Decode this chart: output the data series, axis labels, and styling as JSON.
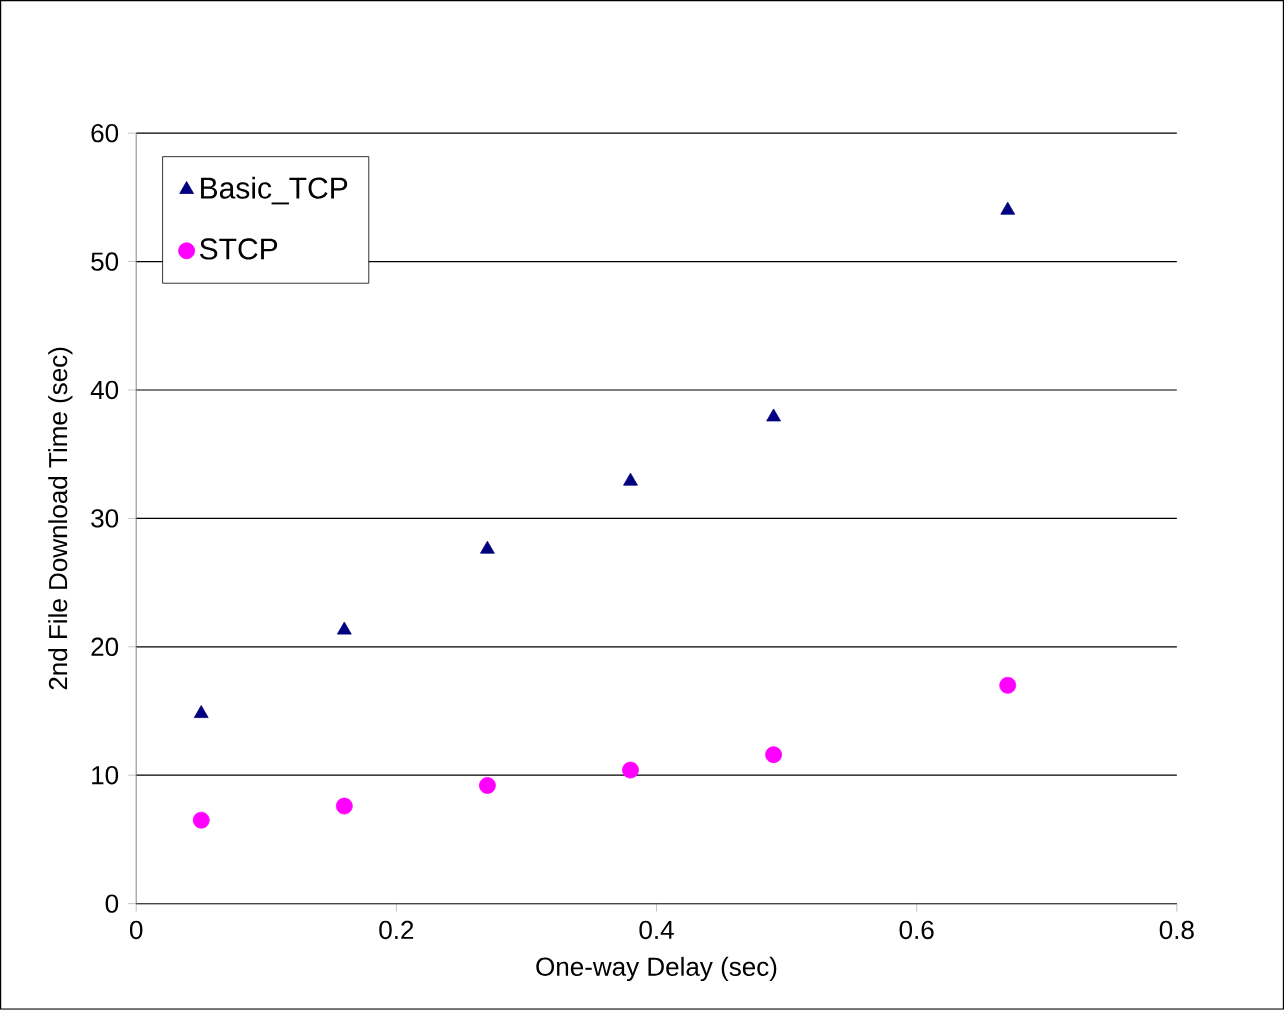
{
  "chart_data": {
    "type": "scatter",
    "xlabel": "One-way Delay (sec)",
    "ylabel": "2nd File Download Time (sec)",
    "x": [
      0.05,
      0.16,
      0.27,
      0.38,
      0.49,
      0.67
    ],
    "series": [
      {
        "name": "Basic_TCP",
        "color": "#000080",
        "marker": "triangle",
        "values": [
          14.8,
          21.3,
          27.6,
          32.9,
          37.9,
          54
        ]
      },
      {
        "name": "STCP",
        "color": "#ff00ff",
        "marker": "circle",
        "values": [
          6.5,
          7.6,
          9.2,
          10.4,
          11.6,
          17
        ]
      }
    ],
    "xlim": [
      0,
      0.8
    ],
    "xticks": [
      0,
      0.2,
      0.4,
      0.6,
      0.8
    ],
    "ylim": [
      0,
      60
    ],
    "yticks": [
      0,
      10,
      20,
      30,
      40,
      50,
      60
    ],
    "grid": "y",
    "legend": "top left"
  }
}
